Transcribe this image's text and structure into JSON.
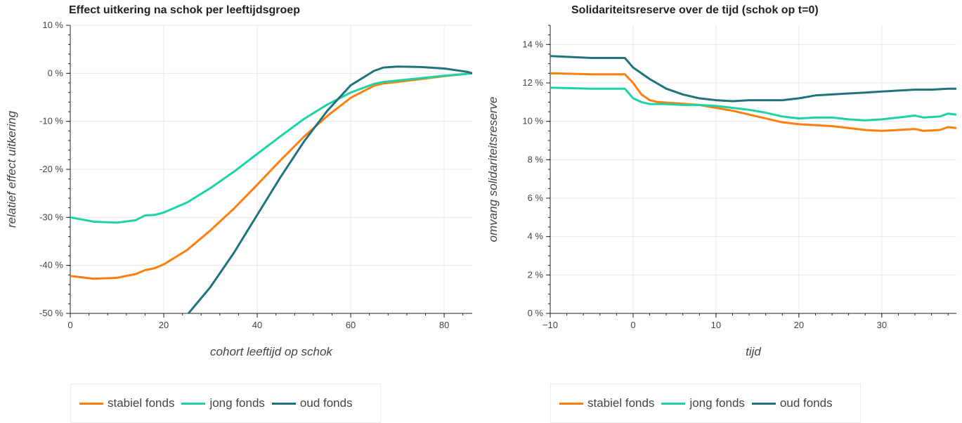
{
  "colors": {
    "stabiel": "#ff7f0e",
    "jong": "#1dd3a4",
    "oud": "#1f737a"
  },
  "legend_labels": [
    "stabiel fonds",
    "jong fonds",
    "oud fonds"
  ],
  "chart_data": [
    {
      "type": "line",
      "title": "Effect uitkering na schok per leeftijdsgroep",
      "xlabel": "cohort leeftijd op schok",
      "ylabel": "relatief effect uitkering",
      "xlim": [
        0,
        86
      ],
      "ylim": [
        -50,
        10
      ],
      "x_ticks": [
        0,
        20,
        40,
        60,
        80
      ],
      "y_ticks": [
        -50,
        -40,
        -30,
        -20,
        -10,
        0,
        10
      ],
      "y_tick_labels": [
        "-50 %",
        "-40 %",
        "-30 %",
        "-20 %",
        "-10 %",
        "0 %",
        "10 %"
      ],
      "grid": true,
      "legend_position": "bottom",
      "series": [
        {
          "name": "stabiel fonds",
          "color": "#ff7f0e",
          "x": [
            0,
            5,
            10,
            14,
            16,
            18,
            20,
            25,
            30,
            35,
            40,
            45,
            50,
            55,
            60,
            65,
            67,
            70,
            75,
            80,
            85,
            86
          ],
          "y": [
            -42.2,
            -42.8,
            -42.6,
            -41.8,
            -41,
            -40.6,
            -39.8,
            -36.8,
            -32.7,
            -28.2,
            -23.2,
            -18.1,
            -13.2,
            -8.9,
            -5.1,
            -2.6,
            -2.1,
            -1.8,
            -1.2,
            -0.6,
            -0.1,
            0
          ]
        },
        {
          "name": "jong fonds",
          "color": "#1dd3a4",
          "x": [
            0,
            5,
            10,
            14,
            16,
            18,
            20,
            25,
            30,
            35,
            40,
            45,
            50,
            55,
            60,
            65,
            67,
            70,
            75,
            80,
            85,
            86
          ],
          "y": [
            -30,
            -30.9,
            -31.1,
            -30.6,
            -29.6,
            -29.5,
            -29,
            -26.9,
            -23.9,
            -20.5,
            -16.8,
            -13.1,
            -9.5,
            -6.5,
            -4,
            -2.2,
            -1.8,
            -1.5,
            -1,
            -0.5,
            -0.1,
            0
          ]
        },
        {
          "name": "oud fonds",
          "color": "#1f737a",
          "x": [
            24,
            30,
            35,
            40,
            45,
            50,
            55,
            60,
            65,
            67,
            70,
            75,
            80,
            85,
            86
          ],
          "y": [
            -51.5,
            -44.5,
            -37.4,
            -29.5,
            -21.6,
            -14.2,
            -7.8,
            -2.5,
            0.5,
            1.2,
            1.4,
            1.3,
            1,
            0.3,
            0
          ]
        }
      ]
    },
    {
      "type": "line",
      "title": "Solidariteitsreserve over de tijd (schok op t=0)",
      "xlabel": "tijd",
      "ylabel": "omvang solidariteitsreserve",
      "xlim": [
        -10,
        39
      ],
      "ylim": [
        0,
        15
      ],
      "x_ticks": [
        -10,
        0,
        10,
        20,
        30
      ],
      "x_tick_labels": [
        "−10",
        "0",
        "10",
        "20",
        "30"
      ],
      "y_ticks": [
        0,
        2,
        4,
        6,
        8,
        10,
        12,
        14
      ],
      "y_tick_labels": [
        "0 %",
        "2 %",
        "4 %",
        "6 %",
        "8 %",
        "10 %",
        "12 %",
        "14 %"
      ],
      "grid": true,
      "legend_position": "bottom",
      "series": [
        {
          "name": "stabiel fonds",
          "color": "#ff7f0e",
          "x": [
            -10,
            -5,
            -1,
            0,
            1,
            2,
            3,
            5,
            8,
            10,
            12,
            14,
            16,
            18,
            20,
            22,
            24,
            26,
            28,
            30,
            32,
            34,
            35,
            37,
            38,
            39
          ],
          "y": [
            12.5,
            12.45,
            12.45,
            12.0,
            11.4,
            11.1,
            11.0,
            10.95,
            10.85,
            10.7,
            10.55,
            10.35,
            10.15,
            9.95,
            9.85,
            9.8,
            9.75,
            9.65,
            9.55,
            9.5,
            9.55,
            9.6,
            9.5,
            9.55,
            9.7,
            9.65
          ]
        },
        {
          "name": "jong fonds",
          "color": "#1dd3a4",
          "x": [
            -10,
            -5,
            -1,
            0,
            1,
            2,
            4,
            6,
            8,
            10,
            12,
            14,
            16,
            18,
            20,
            22,
            24,
            26,
            28,
            30,
            32,
            34,
            35,
            37,
            38,
            39
          ],
          "y": [
            11.75,
            11.7,
            11.7,
            11.2,
            11.0,
            10.9,
            10.9,
            10.85,
            10.85,
            10.8,
            10.7,
            10.6,
            10.45,
            10.25,
            10.15,
            10.2,
            10.2,
            10.1,
            10.05,
            10.1,
            10.2,
            10.3,
            10.2,
            10.25,
            10.4,
            10.35
          ]
        },
        {
          "name": "oud fonds",
          "color": "#1f737a",
          "x": [
            -10,
            -5,
            -1,
            0,
            2,
            4,
            6,
            8,
            10,
            12,
            14,
            16,
            18,
            20,
            22,
            24,
            26,
            28,
            30,
            32,
            34,
            36,
            38,
            39
          ],
          "y": [
            13.4,
            13.3,
            13.3,
            12.8,
            12.2,
            11.7,
            11.4,
            11.2,
            11.1,
            11.05,
            11.1,
            11.1,
            11.1,
            11.2,
            11.35,
            11.4,
            11.45,
            11.5,
            11.55,
            11.6,
            11.65,
            11.65,
            11.7,
            11.7
          ]
        }
      ]
    }
  ]
}
